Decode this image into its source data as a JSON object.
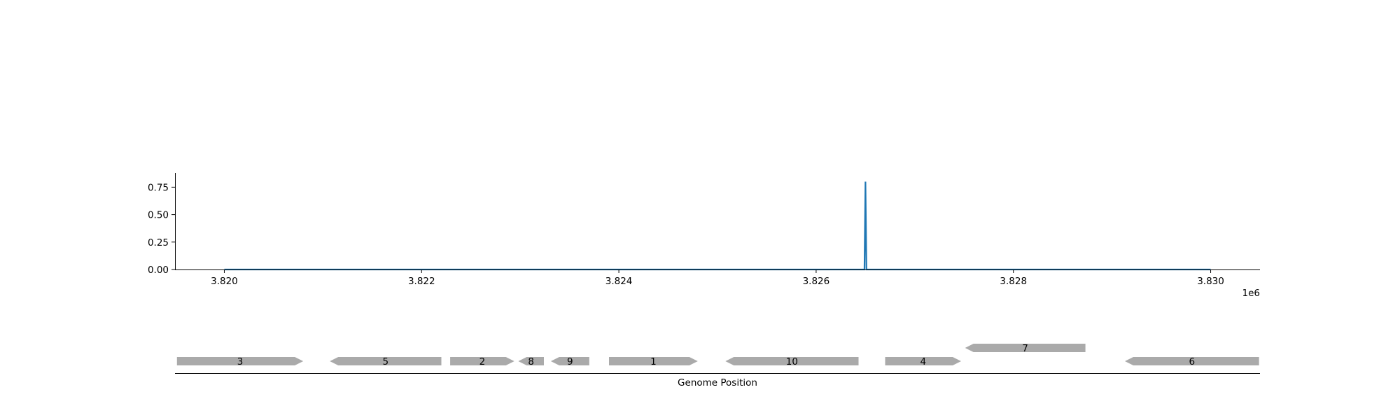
{
  "chart_data": [
    {
      "type": "line",
      "x": [
        3820000,
        3826490,
        3826500,
        3826510,
        3830000
      ],
      "y": [
        0,
        0,
        0.8,
        0,
        0
      ],
      "xlim": [
        3819500,
        3830500
      ],
      "ylim": [
        0,
        0.88
      ],
      "xticks": [
        3820000,
        3822000,
        3824000,
        3826000,
        3828000,
        3830000
      ],
      "xtick_labels": [
        "3.820",
        "3.822",
        "3.824",
        "3.826",
        "3.828",
        "3.830"
      ],
      "yticks": [
        0,
        0.25,
        0.5,
        0.75
      ],
      "ytick_labels": [
        "0.00",
        "0.25",
        "0.50",
        "0.75"
      ],
      "offset_label": "1e6",
      "line_color": "#1f77b4",
      "grid": false
    },
    {
      "type": "gene_track",
      "xlabel": "Genome Position",
      "xlim": [
        3819500,
        3830500
      ],
      "color": "#aaaaaa",
      "genes": [
        {
          "label": "3",
          "start": 3819520,
          "end": 3820800,
          "strand": "+",
          "row": 0
        },
        {
          "label": "5",
          "start": 3821070,
          "end": 3822200,
          "strand": "-",
          "row": 0
        },
        {
          "label": "2",
          "start": 3822290,
          "end": 3822940,
          "strand": "+",
          "row": 0
        },
        {
          "label": "8",
          "start": 3822980,
          "end": 3823240,
          "strand": "-",
          "row": 0
        },
        {
          "label": "9",
          "start": 3823310,
          "end": 3823700,
          "strand": "-",
          "row": 0
        },
        {
          "label": "1",
          "start": 3823900,
          "end": 3824800,
          "strand": "+",
          "row": 0
        },
        {
          "label": "10",
          "start": 3825080,
          "end": 3826430,
          "strand": "-",
          "row": 0
        },
        {
          "label": "4",
          "start": 3826700,
          "end": 3827470,
          "strand": "+",
          "row": 0
        },
        {
          "label": "7",
          "start": 3827510,
          "end": 3828730,
          "strand": "-",
          "row": 1
        },
        {
          "label": "6",
          "start": 3829130,
          "end": 3830490,
          "strand": "-",
          "row": 0
        }
      ]
    }
  ]
}
